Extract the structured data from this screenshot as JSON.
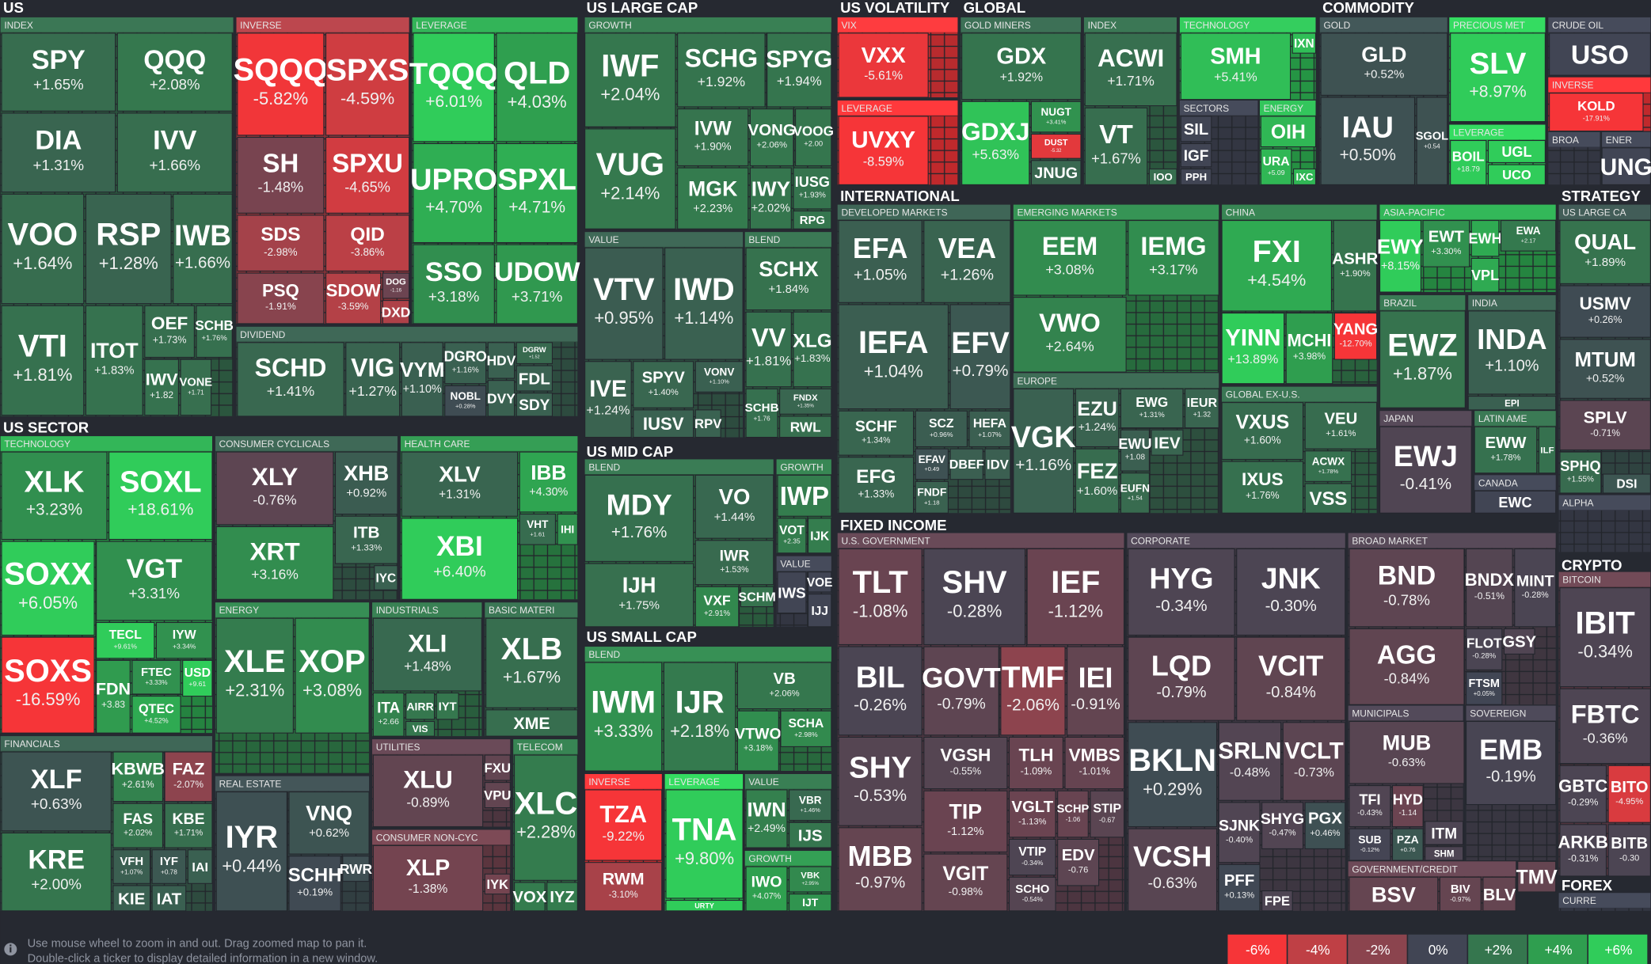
{
  "sections": [
    "US",
    "US SECTOR",
    "US LARGE CAP",
    "US MID CAP",
    "US SMALL CAP",
    "US VOLATILITY",
    "GLOBAL",
    "COMMODITY",
    "INTERNATIONAL",
    "STRATEGY",
    "FIXED INCOME",
    "CRYPTO",
    "FOREX"
  ],
  "groups": [
    "INDEX",
    "INVERSE",
    "LEVERAGE",
    "DIVIDEND",
    "TECHNOLOGY",
    "FINANCIALS",
    "CONSUMER CYCLICALS",
    "HEALTH CARE",
    "ENERGY",
    "INDUSTRIALS",
    "BASIC MATERI",
    "REAL ESTATE",
    "UTILITIES",
    "CONSUMER NON-CYC",
    "TELECOM",
    "GROWTH",
    "VALUE",
    "BLEND",
    "BLEND",
    "GROWTH",
    "VALUE",
    "BLEND",
    "INVERSE",
    "LEVERAGE",
    "VALUE",
    "GROWTH",
    "VIX",
    "LEVERAGE",
    "GOLD MINERS",
    "INDEX",
    "TECHNOLOGY",
    "SECTORS",
    "ENERGY",
    "GOLD",
    "PRECIOUS MET",
    "LEVERAGE",
    "CRUDE OIL",
    "INVERSE",
    "BROA",
    "ENER",
    "DEVELOPED MARKETS",
    "EMERGING MARKETS",
    "EUROPE",
    "CHINA",
    "ASIA-PACIFIC",
    "BRAZIL",
    "INDIA",
    "GLOBAL EX-U.S.",
    "JAPAN",
    "LATIN AME",
    "CANADA",
    "US LARGE CA",
    "ALPHA",
    "U.S. GOVERNMENT",
    "CORPORATE",
    "BROAD MARKET",
    "MUNICIPALS",
    "SOVEREIGN",
    "GOVERNMENT/CREDIT",
    "BITCOIN",
    "CURRE"
  ],
  "tiles": [
    {
      "ticker": "SPY",
      "change": "+1.65%"
    },
    {
      "ticker": "QQQ",
      "change": "+2.08%"
    },
    {
      "ticker": "DIA",
      "change": "+1.31%"
    },
    {
      "ticker": "IVV",
      "change": "+1.66%"
    },
    {
      "ticker": "VOO",
      "change": "+1.64%"
    },
    {
      "ticker": "RSP",
      "change": "+1.28%"
    },
    {
      "ticker": "IWB",
      "change": "+1.66%"
    },
    {
      "ticker": "VTI",
      "change": "+1.81%"
    },
    {
      "ticker": "ITOT",
      "change": "+1.83%"
    },
    {
      "ticker": "OEF",
      "change": "+1.73%"
    },
    {
      "ticker": "SCHB",
      "change": "+1.76%"
    },
    {
      "ticker": "IWV",
      "change": "+1.82"
    },
    {
      "ticker": "VONE",
      "change": "+1.71"
    },
    {
      "ticker": "SQQQ",
      "change": "-5.82%"
    },
    {
      "ticker": "SPXS",
      "change": "-4.59%"
    },
    {
      "ticker": "SH",
      "change": "-1.48%"
    },
    {
      "ticker": "SPXU",
      "change": "-4.65%"
    },
    {
      "ticker": "SDS",
      "change": "-2.98%"
    },
    {
      "ticker": "QID",
      "change": "-3.86%"
    },
    {
      "ticker": "PSQ",
      "change": "-1.91%"
    },
    {
      "ticker": "SDOW",
      "change": "-3.59%"
    },
    {
      "ticker": "DOG",
      "change": "-1.16"
    },
    {
      "ticker": "DXD"
    },
    {
      "ticker": "TQQQ",
      "change": "+6.01%"
    },
    {
      "ticker": "QLD",
      "change": "+4.03%"
    },
    {
      "ticker": "UPRO",
      "change": "+4.70%"
    },
    {
      "ticker": "SPXL",
      "change": "+4.71%"
    },
    {
      "ticker": "SSO",
      "change": "+3.18%"
    },
    {
      "ticker": "UDOW",
      "change": "+3.71%"
    },
    {
      "ticker": "SCHD",
      "change": "+1.41%"
    },
    {
      "ticker": "VIG",
      "change": "+1.27%"
    },
    {
      "ticker": "VYM",
      "change": "+1.10%"
    },
    {
      "ticker": "DGRO",
      "change": "+1.16%"
    },
    {
      "ticker": "NOBL",
      "change": "+0.28%"
    },
    {
      "ticker": "HDV"
    },
    {
      "ticker": "DGRW",
      "change": "+1.52"
    },
    {
      "ticker": "FDL"
    },
    {
      "ticker": "DVY"
    },
    {
      "ticker": "SDY"
    },
    {
      "ticker": "XLK",
      "change": "+3.23%"
    },
    {
      "ticker": "SOXL",
      "change": "+18.61%"
    },
    {
      "ticker": "SOXX",
      "change": "+6.05%"
    },
    {
      "ticker": "VGT",
      "change": "+3.31%"
    },
    {
      "ticker": "SOXS",
      "change": "-16.59%"
    },
    {
      "ticker": "TECL",
      "change": "+9.61%"
    },
    {
      "ticker": "IYW",
      "change": "+3.34%"
    },
    {
      "ticker": "FDN",
      "change": "+3.83"
    },
    {
      "ticker": "FTEC",
      "change": "+3.33%"
    },
    {
      "ticker": "QTEC",
      "change": "+4.52%"
    },
    {
      "ticker": "USD",
      "change": "+9.61"
    },
    {
      "ticker": "XLF",
      "change": "+0.63%"
    },
    {
      "ticker": "KBWB",
      "change": "+2.61%"
    },
    {
      "ticker": "FAZ",
      "change": "-2.07%"
    },
    {
      "ticker": "FAS",
      "change": "+2.02%"
    },
    {
      "ticker": "KBE",
      "change": "+1.71%"
    },
    {
      "ticker": "KRE",
      "change": "+2.00%"
    },
    {
      "ticker": "VFH",
      "change": "+1.07%"
    },
    {
      "ticker": "IYF",
      "change": "+0.78"
    },
    {
      "ticker": "IAI"
    },
    {
      "ticker": "KIE"
    },
    {
      "ticker": "IAT"
    },
    {
      "ticker": "XLY",
      "change": "-0.76%"
    },
    {
      "ticker": "XHB",
      "change": "+0.92%"
    },
    {
      "ticker": "XRT",
      "change": "+3.16%"
    },
    {
      "ticker": "ITB",
      "change": "+1.33%"
    },
    {
      "ticker": "IYC"
    },
    {
      "ticker": "XLV",
      "change": "+1.31%"
    },
    {
      "ticker": "IBB",
      "change": "+4.30%"
    },
    {
      "ticker": "XBI",
      "change": "+6.40%"
    },
    {
      "ticker": "VHT",
      "change": "+1.61"
    },
    {
      "ticker": "IHI"
    },
    {
      "ticker": "XLE",
      "change": "+2.31%"
    },
    {
      "ticker": "XOP",
      "change": "+3.08%"
    },
    {
      "ticker": "XLI",
      "change": "+1.48%"
    },
    {
      "ticker": "ITA",
      "change": "+2.66"
    },
    {
      "ticker": "AIRR"
    },
    {
      "ticker": "IYT"
    },
    {
      "ticker": "VIS"
    },
    {
      "ticker": "XLB",
      "change": "+1.67%"
    },
    {
      "ticker": "XME"
    },
    {
      "ticker": "IYR",
      "change": "+0.44%"
    },
    {
      "ticker": "VNQ",
      "change": "+0.62%"
    },
    {
      "ticker": "SCHH",
      "change": "+0.19%"
    },
    {
      "ticker": "RWR"
    },
    {
      "ticker": "XLU",
      "change": "-0.89%"
    },
    {
      "ticker": "FXU"
    },
    {
      "ticker": "VPU"
    },
    {
      "ticker": "XLP",
      "change": "-1.38%"
    },
    {
      "ticker": "IYK"
    },
    {
      "ticker": "XLC",
      "change": "+2.28%"
    },
    {
      "ticker": "VOX"
    },
    {
      "ticker": "IYZ"
    },
    {
      "ticker": "IWF",
      "change": "+2.04%"
    },
    {
      "ticker": "SCHG",
      "change": "+1.92%"
    },
    {
      "ticker": "SPYG",
      "change": "+1.94%"
    },
    {
      "ticker": "VUG",
      "change": "+2.14%"
    },
    {
      "ticker": "IVW",
      "change": "+1.90%"
    },
    {
      "ticker": "VONG",
      "change": "+2.06%"
    },
    {
      "ticker": "VOOG",
      "change": "+2.00"
    },
    {
      "ticker": "MGK",
      "change": "+2.23%"
    },
    {
      "ticker": "IWY",
      "change": "+2.02%"
    },
    {
      "ticker": "IUSG",
      "change": "+1.93%"
    },
    {
      "ticker": "RPG"
    },
    {
      "ticker": "VTV",
      "change": "+0.95%"
    },
    {
      "ticker": "IWD",
      "change": "+1.14%"
    },
    {
      "ticker": "IVE",
      "change": "+1.24%"
    },
    {
      "ticker": "SPYV",
      "change": "+1.40%"
    },
    {
      "ticker": "VONV",
      "change": "+1.10%"
    },
    {
      "ticker": "IUSV"
    },
    {
      "ticker": "RPV"
    },
    {
      "ticker": "SCHX",
      "change": "+1.84%"
    },
    {
      "ticker": "VV",
      "change": "+1.81%"
    },
    {
      "ticker": "XLG",
      "change": "+1.83%"
    },
    {
      "ticker": "SCHB",
      "change": "+1.76"
    },
    {
      "ticker": "FNDX",
      "change": "+1.35%"
    },
    {
      "ticker": "RWL"
    },
    {
      "ticker": "MDY",
      "change": "+1.76%"
    },
    {
      "ticker": "VO",
      "change": "+1.44%"
    },
    {
      "ticker": "IWR",
      "change": "+1.53%"
    },
    {
      "ticker": "IJH",
      "change": "+1.75%"
    },
    {
      "ticker": "VXF",
      "change": "+2.91%"
    },
    {
      "ticker": "SCHM"
    },
    {
      "ticker": "IWP"
    },
    {
      "ticker": "VOT",
      "change": "+2.35"
    },
    {
      "ticker": "IJK"
    },
    {
      "ticker": "IWS"
    },
    {
      "ticker": "VOE"
    },
    {
      "ticker": "IJJ"
    },
    {
      "ticker": "IWM",
      "change": "+3.33%"
    },
    {
      "ticker": "IJR",
      "change": "+2.18%"
    },
    {
      "ticker": "VB",
      "change": "+2.06%"
    },
    {
      "ticker": "VTWO",
      "change": "+3.18%"
    },
    {
      "ticker": "SCHA",
      "change": "+2.98%"
    },
    {
      "ticker": "TZA",
      "change": "-9.22%"
    },
    {
      "ticker": "RWM",
      "change": "-3.10%"
    },
    {
      "ticker": "TNA",
      "change": "+9.80%"
    },
    {
      "ticker": "URTY"
    },
    {
      "ticker": "IWN",
      "change": "+2.49%"
    },
    {
      "ticker": "VBR",
      "change": "+1.46%"
    },
    {
      "ticker": "IJS"
    },
    {
      "ticker": "IWO",
      "change": "+4.07%"
    },
    {
      "ticker": "VBK",
      "change": "+2.95%"
    },
    {
      "ticker": "IJT"
    },
    {
      "ticker": "VXX",
      "change": "-5.61%"
    },
    {
      "ticker": "UVXY",
      "change": "-8.59%"
    },
    {
      "ticker": "GDX",
      "change": "+1.92%"
    },
    {
      "ticker": "GDXJ",
      "change": "+5.63%"
    },
    {
      "ticker": "NUGT",
      "change": "+3.41%"
    },
    {
      "ticker": "DUST",
      "change": "-5.32"
    },
    {
      "ticker": "JNUG"
    },
    {
      "ticker": "ACWI",
      "change": "+1.71%"
    },
    {
      "ticker": "VT",
      "change": "+1.67%"
    },
    {
      "ticker": "IOO"
    },
    {
      "ticker": "SMH",
      "change": "+5.41%"
    },
    {
      "ticker": "IXN"
    },
    {
      "ticker": "SIL"
    },
    {
      "ticker": "IGF"
    },
    {
      "ticker": "PPH"
    },
    {
      "ticker": "OIH"
    },
    {
      "ticker": "URA",
      "change": "+5.09"
    },
    {
      "ticker": "IXC"
    },
    {
      "ticker": "GLD",
      "change": "+0.52%"
    },
    {
      "ticker": "IAU",
      "change": "+0.50%"
    },
    {
      "ticker": "SGOL",
      "change": "+0.54"
    },
    {
      "ticker": "SLV",
      "change": "+8.97%"
    },
    {
      "ticker": "BOIL",
      "change": "+18.79"
    },
    {
      "ticker": "UGL"
    },
    {
      "ticker": "UCO"
    },
    {
      "ticker": "USO"
    },
    {
      "ticker": "KOLD",
      "change": "-17.91%"
    },
    {
      "ticker": "UNG"
    },
    {
      "ticker": "EFA",
      "change": "+1.05%"
    },
    {
      "ticker": "VEA",
      "change": "+1.26%"
    },
    {
      "ticker": "IEFA",
      "change": "+1.04%"
    },
    {
      "ticker": "EFV",
      "change": "+0.79%"
    },
    {
      "ticker": "SCHF",
      "change": "+1.34%"
    },
    {
      "ticker": "SCZ",
      "change": "+0.96%"
    },
    {
      "ticker": "HEFA",
      "change": "+1.07%"
    },
    {
      "ticker": "EFG",
      "change": "+1.33%"
    },
    {
      "ticker": "EFAV",
      "change": "+0.49"
    },
    {
      "ticker": "DBEF"
    },
    {
      "ticker": "IDV"
    },
    {
      "ticker": "FNDF",
      "change": "+1.18"
    },
    {
      "ticker": "EEM",
      "change": "+3.08%"
    },
    {
      "ticker": "IEMG",
      "change": "+3.17%"
    },
    {
      "ticker": "VWO",
      "change": "+2.64%"
    },
    {
      "ticker": "VGK",
      "change": "+1.16%"
    },
    {
      "ticker": "EZU",
      "change": "+1.24%"
    },
    {
      "ticker": "EWG",
      "change": "+1.31%"
    },
    {
      "ticker": "IEUR",
      "change": "+1.32"
    },
    {
      "ticker": "FEZ",
      "change": "+1.60%"
    },
    {
      "ticker": "EWU",
      "change": "+1.08"
    },
    {
      "ticker": "IEV"
    },
    {
      "ticker": "EUFN",
      "change": "+1.54"
    },
    {
      "ticker": "FXI",
      "change": "+4.54%"
    },
    {
      "ticker": "ASHR",
      "change": "+1.90%"
    },
    {
      "ticker": "YINN",
      "change": "+13.89%"
    },
    {
      "ticker": "MCHI",
      "change": "+3.98%"
    },
    {
      "ticker": "YANG",
      "change": "-12.70%"
    },
    {
      "ticker": "EWY",
      "change": "+8.15%"
    },
    {
      "ticker": "EWT",
      "change": "+3.30%"
    },
    {
      "ticker": "EWH"
    },
    {
      "ticker": "EWA",
      "change": "+2.17"
    },
    {
      "ticker": "VPL"
    },
    {
      "ticker": "EWZ",
      "change": "+1.87%"
    },
    {
      "ticker": "INDA",
      "change": "+1.10%"
    },
    {
      "ticker": "EPI"
    },
    {
      "ticker": "VXUS",
      "change": "+1.60%"
    },
    {
      "ticker": "VEU",
      "change": "+1.61%"
    },
    {
      "ticker": "IXUS",
      "change": "+1.76%"
    },
    {
      "ticker": "ACWX",
      "change": "+1.78%"
    },
    {
      "ticker": "VSS"
    },
    {
      "ticker": "EWJ",
      "change": "-0.41%"
    },
    {
      "ticker": "EWW",
      "change": "+1.78%"
    },
    {
      "ticker": "ILF"
    },
    {
      "ticker": "EWC"
    },
    {
      "ticker": "QUAL",
      "change": "+1.89%"
    },
    {
      "ticker": "USMV",
      "change": "+0.26%"
    },
    {
      "ticker": "MTUM",
      "change": "+0.52%"
    },
    {
      "ticker": "SPLV",
      "change": "-0.71%"
    },
    {
      "ticker": "SPHQ",
      "change": "+1.55%"
    },
    {
      "ticker": "DSI"
    },
    {
      "ticker": "TLT",
      "change": "-1.08%"
    },
    {
      "ticker": "SHV",
      "change": "-0.28%"
    },
    {
      "ticker": "IEF",
      "change": "-1.12%"
    },
    {
      "ticker": "BIL",
      "change": "-0.26%"
    },
    {
      "ticker": "GOVT",
      "change": "-0.79%"
    },
    {
      "ticker": "TMF",
      "change": "-2.06%"
    },
    {
      "ticker": "IEI",
      "change": "-0.91%"
    },
    {
      "ticker": "SHY",
      "change": "-0.53%"
    },
    {
      "ticker": "VGSH",
      "change": "-0.55%"
    },
    {
      "ticker": "TLH",
      "change": "-1.09%"
    },
    {
      "ticker": "VMBS",
      "change": "-1.01%"
    },
    {
      "ticker": "TIP",
      "change": "-1.12%"
    },
    {
      "ticker": "VGLT",
      "change": "-1.13%"
    },
    {
      "ticker": "SCHP",
      "change": "-1.06"
    },
    {
      "ticker": "STIP",
      "change": "-0.67"
    },
    {
      "ticker": "MBB",
      "change": "-0.97%"
    },
    {
      "ticker": "VGIT",
      "change": "-0.98%"
    },
    {
      "ticker": "VTIP",
      "change": "-0.34%"
    },
    {
      "ticker": "EDV",
      "change": "-0.76"
    },
    {
      "ticker": "SCHO",
      "change": "-0.54%"
    },
    {
      "ticker": "HYG",
      "change": "-0.34%"
    },
    {
      "ticker": "JNK",
      "change": "-0.30%"
    },
    {
      "ticker": "LQD",
      "change": "-0.79%"
    },
    {
      "ticker": "VCIT",
      "change": "-0.84%"
    },
    {
      "ticker": "BKLN",
      "change": "+0.29%"
    },
    {
      "ticker": "SRLN",
      "change": "-0.48%"
    },
    {
      "ticker": "VCLT",
      "change": "-0.73%"
    },
    {
      "ticker": "VCSH",
      "change": "-0.63%"
    },
    {
      "ticker": "SJNK",
      "change": "-0.40%"
    },
    {
      "ticker": "SHYG",
      "change": "-0.47%"
    },
    {
      "ticker": "PGX",
      "change": "+0.46%"
    },
    {
      "ticker": "PFF",
      "change": "+0.13%"
    },
    {
      "ticker": "FPE"
    },
    {
      "ticker": "BND",
      "change": "-0.78%"
    },
    {
      "ticker": "BNDX",
      "change": "-0.51%"
    },
    {
      "ticker": "MINT",
      "change": "-0.28%"
    },
    {
      "ticker": "AGG",
      "change": "-0.84%"
    },
    {
      "ticker": "FLOT",
      "change": "-0.28%"
    },
    {
      "ticker": "GSY"
    },
    {
      "ticker": "FTSM",
      "change": "+0.05%"
    },
    {
      "ticker": "MUB",
      "change": "-0.63%"
    },
    {
      "ticker": "TFI",
      "change": "-0.43%"
    },
    {
      "ticker": "HYD",
      "change": "-1.14"
    },
    {
      "ticker": "SUB",
      "change": "-0.12%"
    },
    {
      "ticker": "PZA",
      "change": "+0.76"
    },
    {
      "ticker": "ITM"
    },
    {
      "ticker": "SHM"
    },
    {
      "ticker": "EMB",
      "change": "-0.19%"
    },
    {
      "ticker": "BSV"
    },
    {
      "ticker": "BIV",
      "change": "-0.97%"
    },
    {
      "ticker": "BLV"
    },
    {
      "ticker": "TMV"
    },
    {
      "ticker": "IBIT",
      "change": "-0.34%"
    },
    {
      "ticker": "FBTC",
      "change": "-0.36%"
    },
    {
      "ticker": "GBTC",
      "change": "-0.29%"
    },
    {
      "ticker": "BITO",
      "change": "-4.95%"
    },
    {
      "ticker": "ARKB",
      "change": "-0.31%"
    },
    {
      "ticker": "BITB",
      "change": "-0.30"
    }
  ],
  "footer": {
    "hint": [
      "Use mouse wheel to zoom in and out. Drag zoomed map to pan it.",
      "Double-click a ticker to display detailed information in a new window."
    ]
  },
  "legend": [
    "-6%",
    "-4%",
    "-2%",
    "0%",
    "+2%",
    "+4%",
    "+6%"
  ]
}
